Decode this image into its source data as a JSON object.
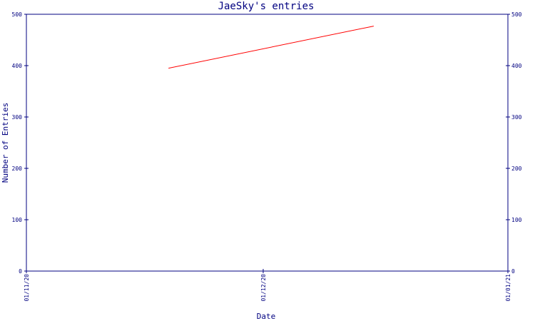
{
  "chart_data": {
    "type": "line",
    "title": "JaeSky's entries",
    "xlabel": "Date",
    "ylabel": "Number of Entries",
    "x_ticks": [
      "01/11/20",
      "01/12/20",
      "01/01/21"
    ],
    "x_range": [
      "01/11/20",
      "01/01/21"
    ],
    "y_ticks": [
      0,
      100,
      200,
      300,
      400,
      500
    ],
    "ylim": [
      0,
      500
    ],
    "grid": false,
    "series": [
      {
        "color": "#ff0000",
        "points": [
          {
            "x": "2020-11-19",
            "y": 395
          },
          {
            "x": "2020-12-15",
            "y": 477
          }
        ]
      }
    ]
  },
  "colors": {
    "axis": "#000080",
    "background": "#ffffff"
  }
}
